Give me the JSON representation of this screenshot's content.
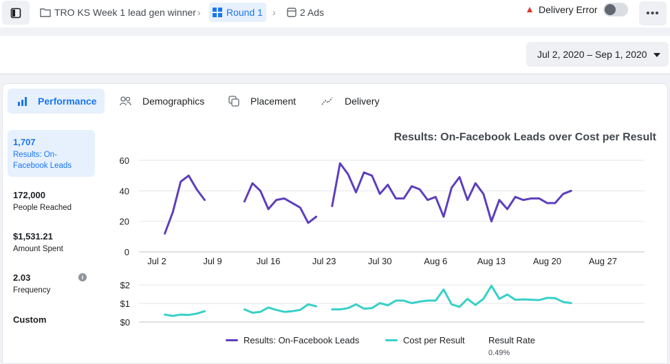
{
  "breadcrumb": {
    "campaign": "TRO KS Week 1 lead gen winner",
    "adset": "Round 1",
    "ads": "2 Ads"
  },
  "status": {
    "delivery_error": "Delivery Error",
    "toggle_on": false
  },
  "date_range": "Jul 2, 2020 – Sep 1, 2020",
  "tabs": [
    "Performance",
    "Demographics",
    "Placement",
    "Delivery"
  ],
  "metrics": [
    {
      "value": "1,707",
      "label": "Results: On-Facebook Leads"
    },
    {
      "value": "172,000",
      "label": "People Reached"
    },
    {
      "value": "$1,531.21",
      "label": "Amount Spent"
    },
    {
      "value": "2.03",
      "label": "Frequency"
    }
  ],
  "custom_label": "Custom",
  "colors": {
    "accent": "#1876f2",
    "leads": "#5d3ebc",
    "cost": "#36d0c8",
    "warning": "#e0362f"
  },
  "legend": {
    "leads": "Results: On-Facebook Leads",
    "cost": "Cost per Result",
    "rate_label": "Result Rate",
    "rate_value": "0.49%"
  },
  "chart_data": [
    {
      "type": "line",
      "title": "Results: On-Facebook Leads over Cost per Result",
      "xlabel": "",
      "ylabel": "",
      "x_tick_labels": [
        "Jul 2",
        "Jul 9",
        "Jul 16",
        "Jul 23",
        "Jul 30",
        "Aug 6",
        "Aug 13",
        "Aug 20",
        "Aug 27"
      ],
      "y_tick_labels": [
        "0",
        "20",
        "40",
        "60"
      ],
      "ylim": [
        0,
        60
      ],
      "grid": true,
      "series": [
        {
          "name": "Results: On-Facebook Leads",
          "segments": [
            {
              "start_day": 3,
              "values": [
                12,
                26,
                46,
                50,
                41,
                34
              ]
            },
            {
              "start_day": 13,
              "values": [
                33,
                45,
                40,
                28,
                34,
                35,
                32,
                29,
                19,
                23
              ]
            },
            {
              "start_day": 24,
              "values": [
                30,
                58,
                51,
                39,
                52,
                50,
                38,
                44,
                35,
                35,
                43,
                41,
                34,
                36,
                23,
                42,
                49,
                34,
                45,
                38,
                20,
                34,
                28,
                36,
                34,
                35,
                35,
                32,
                32,
                38,
                40
              ]
            }
          ]
        }
      ]
    },
    {
      "type": "line",
      "title": "",
      "y_tick_labels": [
        "$0",
        "$1",
        "$2"
      ],
      "ylim": [
        0,
        2
      ],
      "grid": true,
      "series": [
        {
          "name": "Cost per Result",
          "segments": [
            {
              "start_day": 3,
              "values": [
                0.4,
                0.33,
                0.4,
                0.38,
                0.45,
                0.58
              ]
            },
            {
              "start_day": 13,
              "values": [
                0.68,
                0.5,
                0.55,
                0.78,
                0.65,
                0.55,
                0.58,
                0.65,
                0.95,
                0.85
              ]
            },
            {
              "start_day": 24,
              "values": [
                0.68,
                0.68,
                0.75,
                0.95,
                0.72,
                0.75,
                1.02,
                0.9,
                1.15,
                1.15,
                1.02,
                1.1,
                1.15,
                1.15,
                1.75,
                0.95,
                0.82,
                1.25,
                0.92,
                1.25,
                1.95,
                1.25,
                1.48,
                1.2,
                1.22,
                1.2,
                1.18,
                1.3,
                1.28,
                1.08,
                1.02
              ]
            }
          ]
        }
      ]
    }
  ]
}
